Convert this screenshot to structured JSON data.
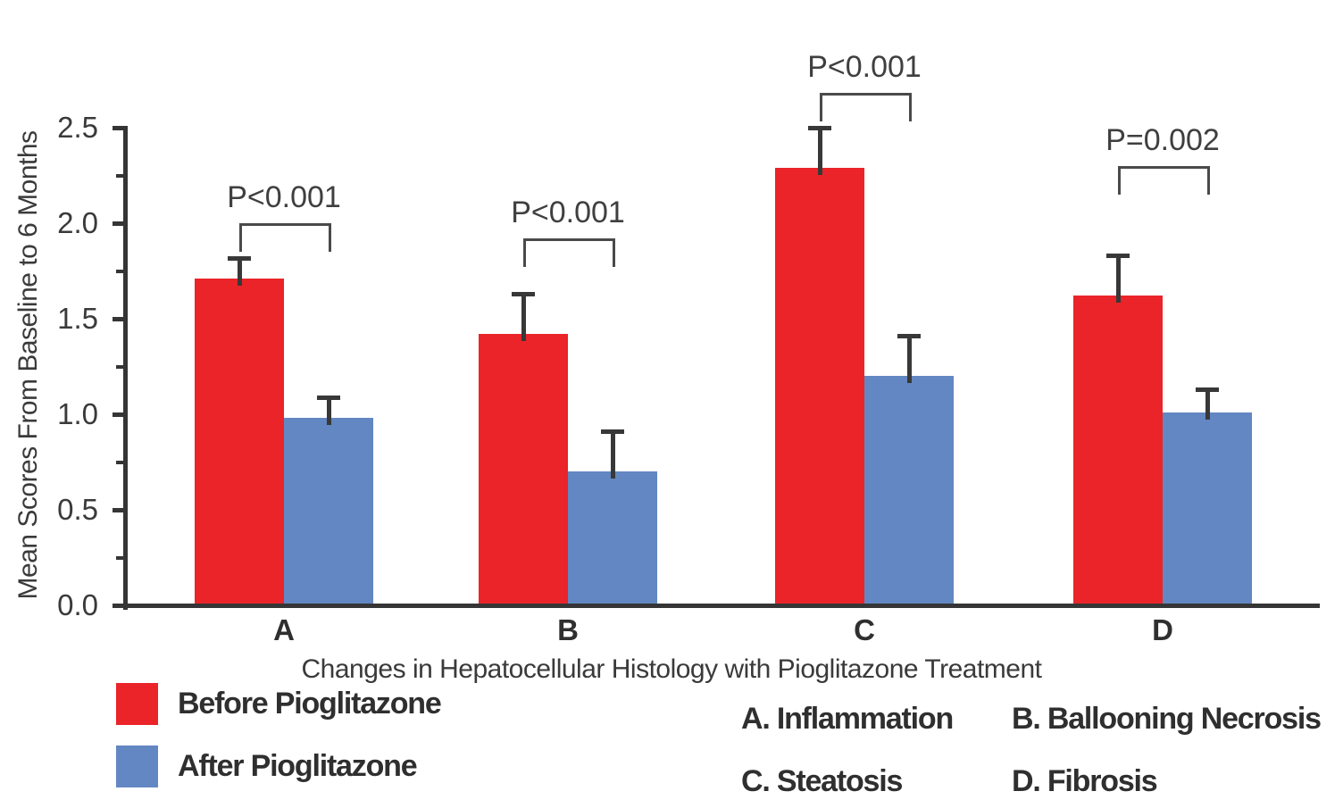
{
  "figure": {
    "y_axis_title": "Mean Scores From Baseline to 6 Months",
    "x_caption": "Changes in Hepatocellular Histology with Pioglitazone Treatment",
    "y_ticks": [
      "0.0",
      "0.5",
      "1.0",
      "1.5",
      "2.0",
      "2.5"
    ]
  },
  "legend": {
    "items": [
      {
        "label": "Before Pioglitazone",
        "color": "#EA2429"
      },
      {
        "label": "After Pioglitazone",
        "color": "#6287C2"
      }
    ]
  },
  "key": {
    "items": [
      {
        "label": "A. Inflammation"
      },
      {
        "label": "B. Ballooning Necrosis"
      },
      {
        "label": "C. Steatosis"
      },
      {
        "label": "D. Fibrosis"
      }
    ]
  },
  "chart_data": {
    "type": "bar",
    "title": "Changes in Hepatocellular Histology with Pioglitazone Treatment",
    "xlabel": "",
    "ylabel": "Mean Scores From Baseline to 6 Months",
    "ylim": [
      0,
      2.5
    ],
    "y_tick_step": 0.5,
    "y_minor_tick_step": 0.25,
    "grid": false,
    "legend_position": "bottom-left",
    "categories": [
      "A",
      "B",
      "C",
      "D"
    ],
    "series": [
      {
        "name": "Before Pioglitazone",
        "color": "#EA2429",
        "values": [
          1.71,
          1.42,
          2.29,
          1.62
        ],
        "errors_upper": [
          0.11,
          0.21,
          0.21,
          0.21
        ]
      },
      {
        "name": "After Pioglitazone",
        "color": "#6287C2",
        "values": [
          0.98,
          0.7,
          1.2,
          1.01
        ],
        "errors_upper": [
          0.11,
          0.21,
          0.21,
          0.12
        ]
      }
    ],
    "annotations": [
      {
        "category": "A",
        "label": "P<0.001",
        "bracket_y": 2.0
      },
      {
        "category": "B",
        "label": "P<0.001",
        "bracket_y": 1.92
      },
      {
        "category": "C",
        "label": "P<0.001",
        "bracket_y": 2.68
      },
      {
        "category": "D",
        "label": "P=0.002",
        "bracket_y": 2.3
      }
    ]
  }
}
